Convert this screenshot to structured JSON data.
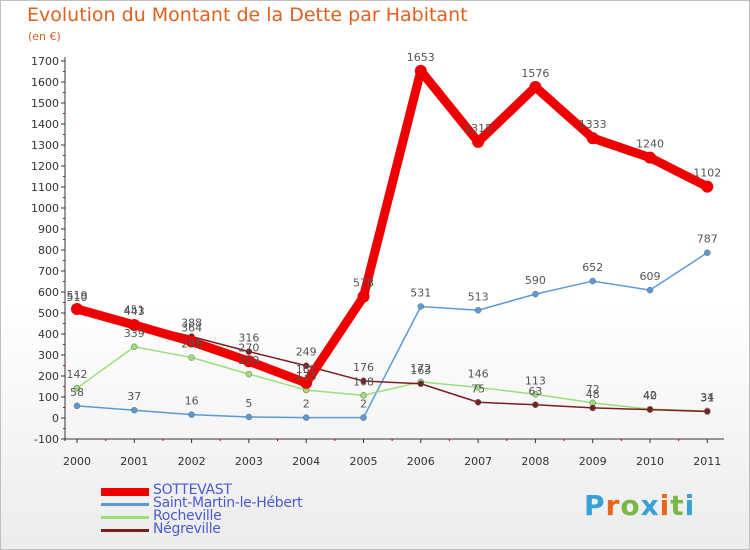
{
  "title": "Evolution du Montant de la Dette par Habitant",
  "subtitle": "(en €)",
  "logo": {
    "text": "Proxiti",
    "letter_colors": [
      "#3aa0d8",
      "#e8661c",
      "#7ab648",
      "#3aa0d8",
      "#e8661c",
      "#7ab648",
      "#3aa0d8"
    ]
  },
  "chart_data": {
    "type": "line",
    "title": "Evolution du Montant de la Dette par Habitant",
    "subtitle": "(en €)",
    "x": [
      "2000",
      "2001",
      "2002",
      "2003",
      "2004",
      "2005",
      "2006",
      "2007",
      "2008",
      "2009",
      "2010",
      "2011"
    ],
    "ylim": [
      -100,
      1700
    ],
    "yticks": [
      -100,
      0,
      100,
      200,
      300,
      400,
      500,
      600,
      700,
      800,
      900,
      1000,
      1100,
      1200,
      1300,
      1400,
      1500,
      1600,
      1700
    ],
    "grid": false,
    "legend_position": "bottom-left",
    "series": [
      {
        "name": "SOTTEVAST",
        "color": "#ee0000",
        "values": [
          519,
          443,
          364,
          270,
          167,
          578,
          1653,
          1315,
          1576,
          1333,
          1240,
          1102
        ],
        "labels": [
          "519",
          "443",
          "364",
          "270",
          "167",
          "578",
          "1653",
          "1315",
          "1576",
          "1333",
          "1240",
          "1102"
        ]
      },
      {
        "name": "Saint-Martin-le-Hébert",
        "color": "#5b9bd5",
        "values": [
          58,
          37,
          16,
          5,
          2,
          2,
          531,
          513,
          590,
          652,
          609,
          787
        ],
        "labels": [
          "58",
          "37",
          "16",
          "5",
          "2",
          "2",
          "531",
          "513",
          "590",
          "652",
          "609",
          "787"
        ]
      },
      {
        "name": "Rocheville",
        "color": "#99e07a",
        "values": [
          142,
          339,
          288,
          209,
          133,
          108,
          172,
          146,
          113,
          72,
          42,
          34
        ],
        "labels": [
          "142",
          "339",
          "288",
          "209",
          "133",
          "108",
          "172",
          "146",
          "113",
          "72",
          "42",
          "34"
        ]
      },
      {
        "name": "Négreville",
        "color": "#7a1f1f",
        "values": [
          510,
          451,
          388,
          316,
          249,
          176,
          163,
          75,
          63,
          48,
          40,
          31
        ],
        "labels": [
          "510",
          "451",
          "388",
          "316",
          "249",
          "176",
          "163",
          "75",
          "63",
          "48",
          "40",
          "31"
        ]
      }
    ]
  }
}
